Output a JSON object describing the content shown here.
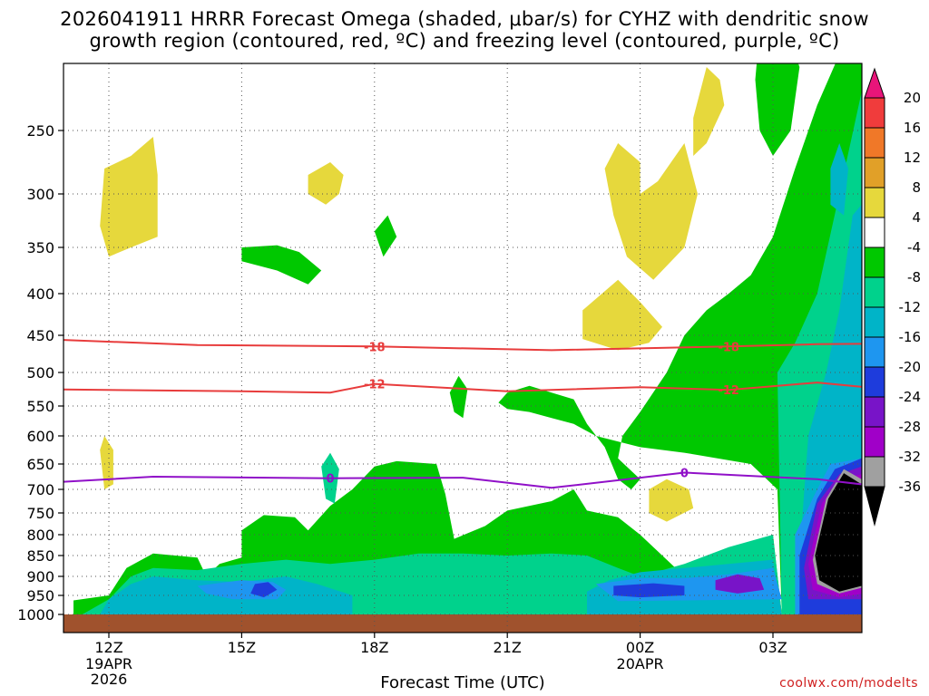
{
  "title_line1": "2026041911 HRRR Forecast Omega (shaded, μbar/s) for CYHZ with dendritic snow",
  "title_line2": "growth region (contoured, red, ºC) and freezing level (contoured, purple, ºC)",
  "credit": "coolwx.com/modelts",
  "chart_data": {
    "type": "heatmap",
    "title": "2026041911 HRRR Forecast Omega (shaded, μbar/s) for CYHZ with dendritic snow growth region (contoured, red, ºC) and freezing level (contoured, purple, ºC)",
    "xlabel": "Forecast Time (UTC)",
    "ylabel": "",
    "x_range_hours_after_19APR_12Z": [
      -1.6,
      17.7
    ],
    "y_axis": "pressure (hPa), inverted",
    "y_ticks": [
      "250",
      "300",
      "350",
      "400",
      "450",
      "500",
      "550",
      "600",
      "650",
      "700",
      "750",
      "800",
      "850",
      "900",
      "950",
      "1000"
    ],
    "x_ticks": [
      {
        "label": "12Z",
        "sub": [
          "19APR",
          "2026"
        ]
      },
      {
        "label": "15Z",
        "sub": []
      },
      {
        "label": "18Z",
        "sub": []
      },
      {
        "label": "21Z",
        "sub": []
      },
      {
        "label": "00Z",
        "sub": [
          "20APR"
        ]
      },
      {
        "label": "03Z",
        "sub": []
      }
    ],
    "grid": true,
    "colorbar": {
      "labels": [
        "20",
        "16",
        "12",
        "8",
        "4",
        "-4",
        "-8",
        "-12",
        "-16",
        "-20",
        "-24",
        "-28",
        "-32",
        "-36"
      ],
      "colors": [
        "#e8157a",
        "#f03c3c",
        "#f07828",
        "#e1a028",
        "#e6d83c",
        "#ffffff",
        "#00c800",
        "#00d28c",
        "#00b4c8",
        "#1e96f0",
        "#1e3cdc",
        "#7814c8",
        "#a000c8",
        "#a0a0a0",
        "#000000"
      ]
    },
    "contours": [
      {
        "label": "-18",
        "color": "#e83c3c",
        "points": [
          [
            -1.6,
            455
          ],
          [
            2,
            463
          ],
          [
            6,
            465
          ],
          [
            10,
            470
          ],
          [
            14,
            465
          ],
          [
            16,
            462
          ],
          [
            17.7,
            461
          ]
        ]
      },
      {
        "label": "-12",
        "color": "#e83c3c",
        "points": [
          [
            -1.6,
            525
          ],
          [
            3,
            528
          ],
          [
            5,
            530
          ],
          [
            6,
            517
          ],
          [
            9,
            528
          ],
          [
            12,
            522
          ],
          [
            14,
            526
          ],
          [
            16,
            515
          ],
          [
            17.7,
            526
          ]
        ]
      },
      {
        "label": "0",
        "color": "#9010c8",
        "points": [
          [
            -1.6,
            688
          ],
          [
            1,
            675
          ],
          [
            5,
            678
          ],
          [
            8,
            677
          ],
          [
            10,
            697
          ],
          [
            13,
            667
          ],
          [
            16,
            680
          ],
          [
            17.7,
            697
          ]
        ]
      }
    ]
  }
}
